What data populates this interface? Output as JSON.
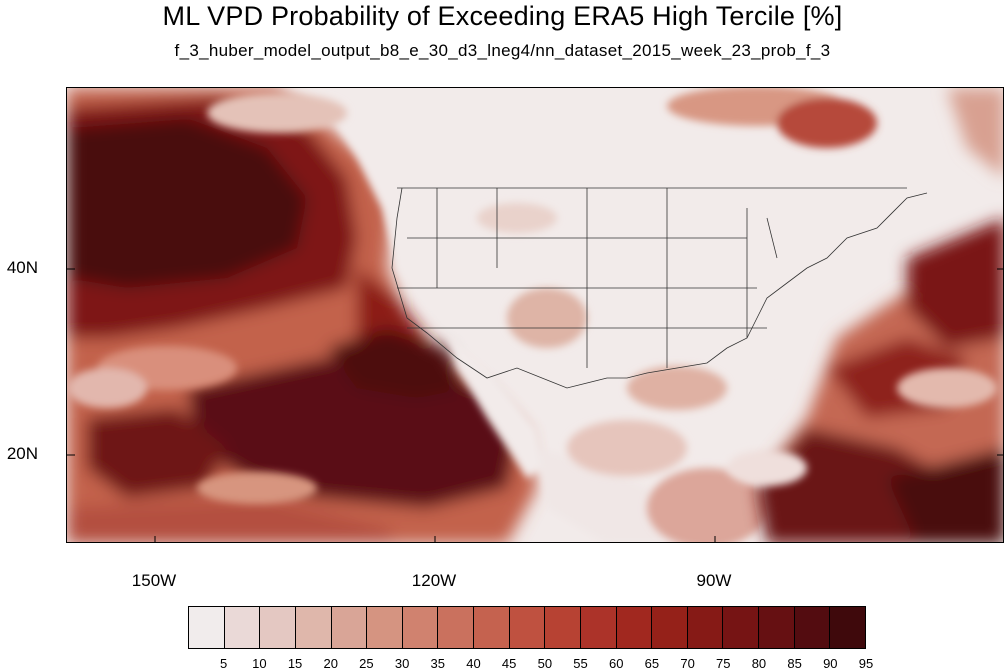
{
  "title": "ML VPD Probability of Exceeding ERA5 High Tercile [%]",
  "subtitle": "f_3_huber_model_output_b8_e_30_d3_lneg4/nn_dataset_2015_week_23_prob_f_3",
  "map": {
    "projection": "cylindrical-equidistant",
    "lon_range": [
      -160,
      -60
    ],
    "lat_range": [
      11,
      60
    ],
    "lon_labels": [
      "150W",
      "120W",
      "90W"
    ],
    "lat_labels": [
      "40N",
      "20N"
    ]
  },
  "colorbar": {
    "labels": [
      "5",
      "10",
      "15",
      "20",
      "25",
      "30",
      "35",
      "40",
      "45",
      "50",
      "55",
      "60",
      "65",
      "70",
      "75",
      "80",
      "85",
      "90",
      "95"
    ],
    "colors": [
      "#f1ecec",
      "#ead9d7",
      "#e4c8c2",
      "#dfb7ab",
      "#d9a597",
      "#d59481",
      "#d0826f",
      "#ca715e",
      "#c5624f",
      "#bf5140",
      "#b74233",
      "#ac3329",
      "#a1281f",
      "#952119",
      "#861a16",
      "#761414",
      "#661012",
      "#530c10",
      "#3f090c"
    ]
  }
}
